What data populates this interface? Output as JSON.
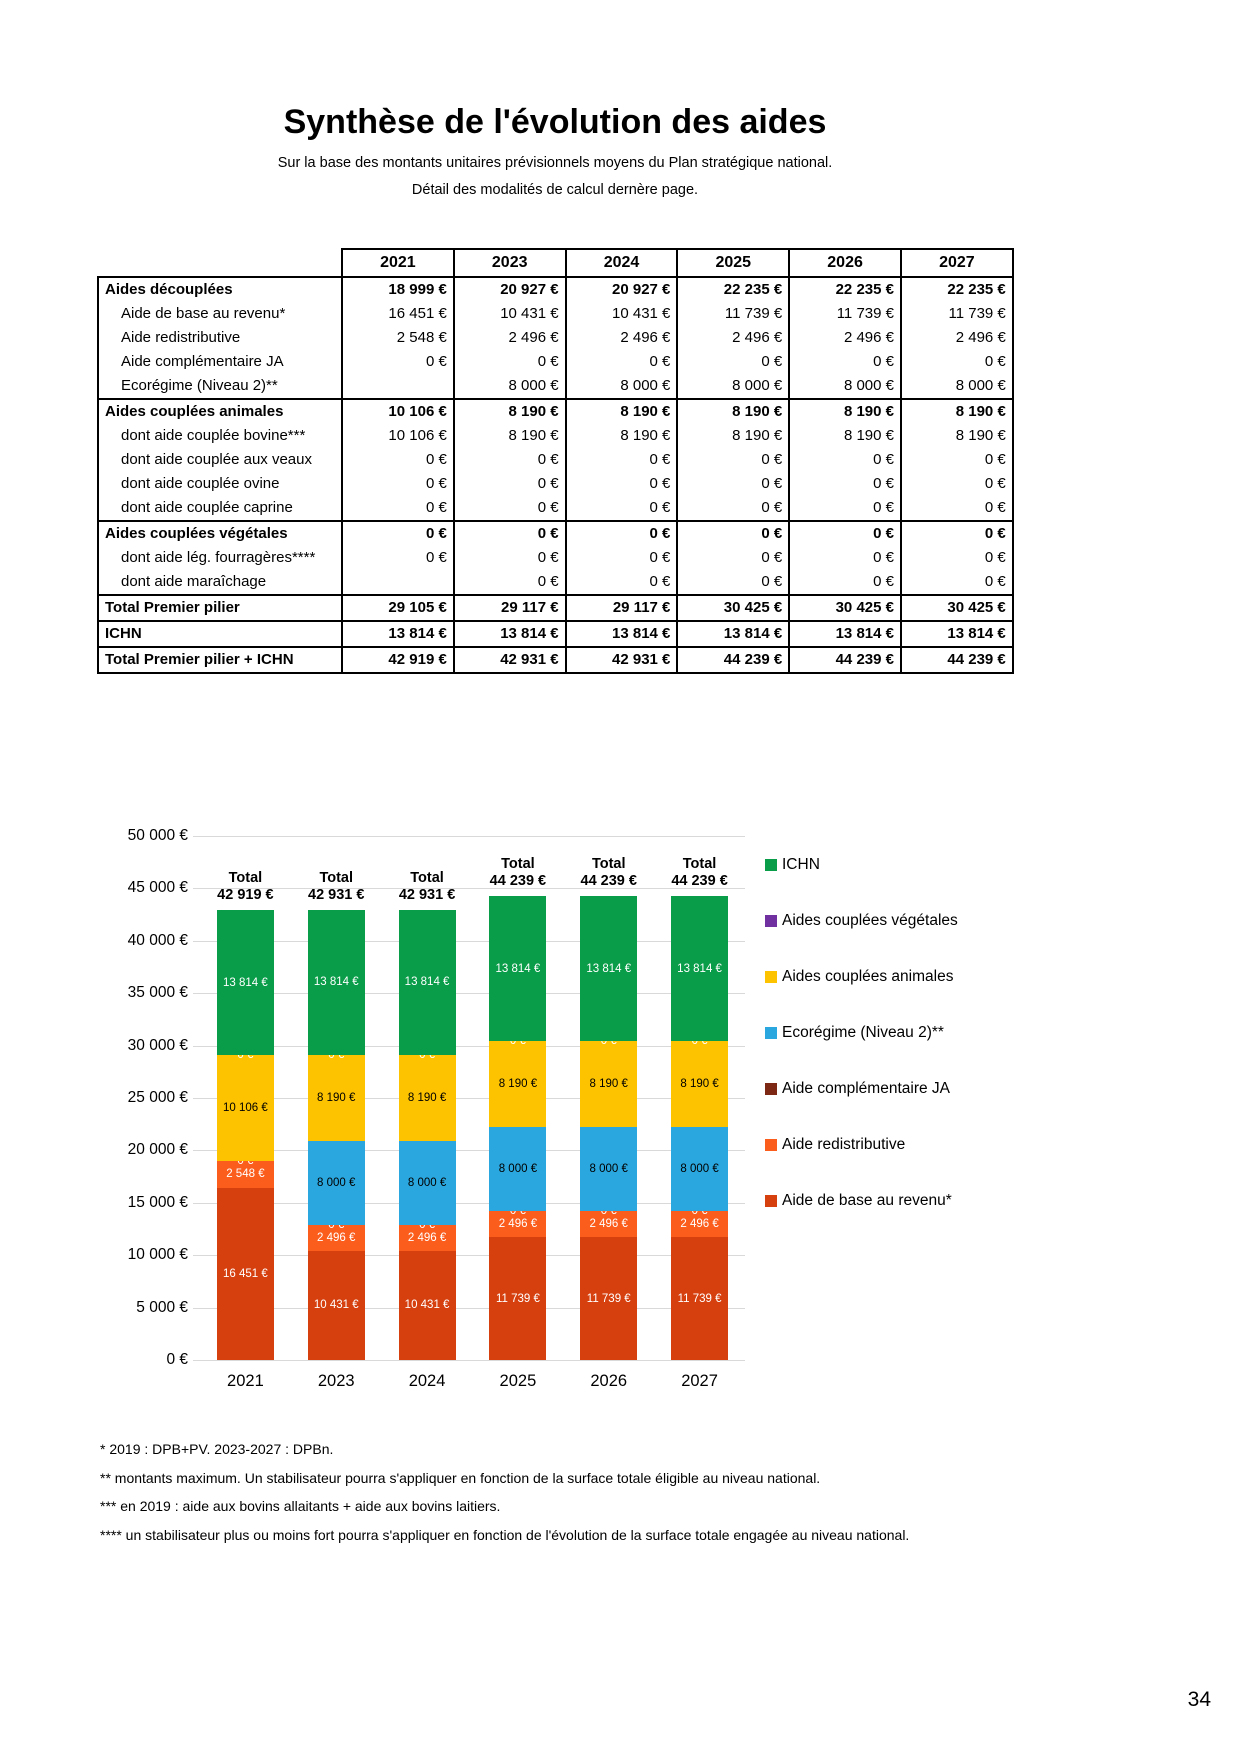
{
  "header": {
    "title": "Synthèse de l'évolution des aides",
    "subtitle1": "Sur la base des montants unitaires prévisionnels moyens du Plan stratégique national.",
    "subtitle2": "Détail des modalités de calcul dernère page."
  },
  "table": {
    "col_headers": [
      "2021",
      "2023",
      "2024",
      "2025",
      "2026",
      "2027"
    ],
    "rows": [
      {
        "label": "Aides découplées",
        "bold": true,
        "indent": false,
        "sep_above": true,
        "values": [
          "18 999 €",
          "20 927 €",
          "20 927 €",
          "22 235 €",
          "22 235 €",
          "22 235 €"
        ]
      },
      {
        "label": "Aide de base au revenu*",
        "bold": false,
        "indent": true,
        "sep_above": false,
        "values": [
          "16 451 €",
          "10 431 €",
          "10 431 €",
          "11 739 €",
          "11 739 €",
          "11 739 €"
        ]
      },
      {
        "label": "Aide redistributive",
        "bold": false,
        "indent": true,
        "sep_above": false,
        "values": [
          "2 548 €",
          "2 496 €",
          "2 496 €",
          "2 496 €",
          "2 496 €",
          "2 496 €"
        ]
      },
      {
        "label": "Aide complémentaire JA",
        "bold": false,
        "indent": true,
        "sep_above": false,
        "values": [
          "0 €",
          "0 €",
          "0 €",
          "0 €",
          "0 €",
          "0 €"
        ]
      },
      {
        "label": "Ecorégime (Niveau 2)**",
        "bold": false,
        "indent": true,
        "sep_above": false,
        "values": [
          "",
          "8 000 €",
          "8 000 €",
          "8 000 €",
          "8 000 €",
          "8 000 €"
        ]
      },
      {
        "label": "Aides couplées animales",
        "bold": true,
        "indent": false,
        "sep_above": true,
        "values": [
          "10 106 €",
          "8 190 €",
          "8 190 €",
          "8 190 €",
          "8 190 €",
          "8 190 €"
        ]
      },
      {
        "label": "dont aide couplée bovine***",
        "bold": false,
        "indent": true,
        "sep_above": false,
        "values": [
          "10 106 €",
          "8 190 €",
          "8 190 €",
          "8 190 €",
          "8 190 €",
          "8 190 €"
        ]
      },
      {
        "label": "dont aide couplée aux veaux",
        "bold": false,
        "indent": true,
        "sep_above": false,
        "values": [
          "0 €",
          "0 €",
          "0 €",
          "0 €",
          "0 €",
          "0 €"
        ]
      },
      {
        "label": "dont aide couplée ovine",
        "bold": false,
        "indent": true,
        "sep_above": false,
        "values": [
          "0 €",
          "0 €",
          "0 €",
          "0 €",
          "0 €",
          "0 €"
        ]
      },
      {
        "label": "dont aide couplée caprine",
        "bold": false,
        "indent": true,
        "sep_above": false,
        "values": [
          "0 €",
          "0 €",
          "0 €",
          "0 €",
          "0 €",
          "0 €"
        ]
      },
      {
        "label": "Aides couplées végétales",
        "bold": true,
        "indent": false,
        "sep_above": true,
        "values": [
          "0 €",
          "0 €",
          "0 €",
          "0 €",
          "0 €",
          "0 €"
        ]
      },
      {
        "label": "dont aide lég. fourragères****",
        "bold": false,
        "indent": true,
        "sep_above": false,
        "values": [
          "0 €",
          "0 €",
          "0 €",
          "0 €",
          "0 €",
          "0 €"
        ]
      },
      {
        "label": "dont aide maraîchage",
        "bold": false,
        "indent": true,
        "sep_above": false,
        "values": [
          "",
          "0 €",
          "0 €",
          "0 €",
          "0 €",
          "0 €"
        ]
      },
      {
        "label": "Total Premier pilier",
        "bold": true,
        "indent": false,
        "sep_above": true,
        "values": [
          "29 105 €",
          "29 117 €",
          "29 117 €",
          "30 425 €",
          "30 425 €",
          "30 425 €"
        ]
      },
      {
        "label": "ICHN",
        "bold": true,
        "indent": false,
        "sep_above": true,
        "values": [
          "13 814 €",
          "13 814 €",
          "13 814 €",
          "13 814 €",
          "13 814 €",
          "13 814 €"
        ]
      },
      {
        "label": "Total Premier pilier + ICHN",
        "bold": true,
        "indent": false,
        "sep_above": true,
        "values": [
          "42 919 €",
          "42 931 €",
          "42 931 €",
          "44 239 €",
          "44 239 €",
          "44 239 €"
        ]
      }
    ]
  },
  "chart_data": {
    "type": "bar",
    "stacked": true,
    "categories": [
      "2021",
      "2023",
      "2024",
      "2025",
      "2026",
      "2027"
    ],
    "series": [
      {
        "key": "aide-base-revenu",
        "name": "Aide de base au revenu*",
        "color": "#d6400f",
        "label_color": "#ffffff",
        "values": [
          16451,
          10431,
          10431,
          11739,
          11739,
          11739
        ],
        "values_fmt": [
          "16 451 €",
          "10 431 €",
          "10 431 €",
          "11 739 €",
          "11 739 €",
          "11 739 €"
        ]
      },
      {
        "key": "aide-redistributive",
        "name": "Aide redistributive",
        "color": "#fb5d1d",
        "label_color": "#ffffff",
        "values": [
          2548,
          2496,
          2496,
          2496,
          2496,
          2496
        ],
        "values_fmt": [
          "2 548 €",
          "2 496 €",
          "2 496 €",
          "2 496 €",
          "2 496 €",
          "2 496 €"
        ]
      },
      {
        "key": "aide-complementaire-ja",
        "name": "Aide complémentaire JA",
        "color": "#7c2815",
        "label_color": "#ffffff",
        "values": [
          0,
          0,
          0,
          0,
          0,
          0
        ],
        "values_fmt": [
          "0 €",
          "0 €",
          "0 €",
          "0 €",
          "0 €",
          "0 €"
        ]
      },
      {
        "key": "ecoregime",
        "name": "Ecorégime (Niveau 2)**",
        "color": "#2aa7de",
        "label_color": "#000000",
        "values": [
          null,
          8000,
          8000,
          8000,
          8000,
          8000
        ],
        "values_fmt": [
          "",
          "8 000 €",
          "8 000 €",
          "8 000 €",
          "8 000 €",
          "8 000 €"
        ]
      },
      {
        "key": "aides-couplees-animales",
        "name": "Aides couplées animales",
        "color": "#fdc300",
        "label_color": "#000000",
        "values": [
          10106,
          8190,
          8190,
          8190,
          8190,
          8190
        ],
        "values_fmt": [
          "10 106 €",
          "8 190 €",
          "8 190 €",
          "8 190 €",
          "8 190 €",
          "8 190 €"
        ]
      },
      {
        "key": "aides-couplees-vegetales",
        "name": "Aides couplées végétales",
        "color": "#7030a0",
        "label_color": "#ffffff",
        "values": [
          0,
          0,
          0,
          0,
          0,
          0
        ],
        "values_fmt": [
          "0 €",
          "0 €",
          "0 €",
          "0 €",
          "0 €",
          "0 €"
        ]
      },
      {
        "key": "ichn",
        "name": "ICHN",
        "color": "#0a9d49",
        "label_color": "#ffffff",
        "values": [
          13814,
          13814,
          13814,
          13814,
          13814,
          13814
        ],
        "values_fmt": [
          "13 814 €",
          "13 814 €",
          "13 814 €",
          "13 814 €",
          "13 814 €",
          "13 814 €"
        ]
      }
    ],
    "total_label": "Total",
    "totals": [
      "42 919 €",
      "42 931 €",
      "42 931 €",
      "44 239 €",
      "44 239 €",
      "44 239 €"
    ],
    "ylim": [
      0,
      50000
    ],
    "ytick_step": 5000,
    "ytick_labels": [
      "50 000 €",
      "45 000 €",
      "40 000 €",
      "35 000 €",
      "30 000 €",
      "25 000 €",
      "20 000 €",
      "15 000 €",
      "10 000 €",
      "5 000 €",
      "0 €"
    ],
    "grid": true,
    "legend_position": "right",
    "legend_order": "reversed"
  },
  "footnotes": [
    "* 2019 : DPB+PV. 2023-2027 : DPBn.",
    "** montants maximum. Un stabilisateur pourra s'appliquer en fonction de la surface totale éligible au niveau national.",
    "*** en 2019 : aide aux bovins allaitants + aide aux bovins laitiers.",
    "**** un stabilisateur plus ou moins fort pourra s'appliquer en fonction de l'évolution de la surface totale engagée au niveau national."
  ],
  "page": {
    "number": "34"
  }
}
